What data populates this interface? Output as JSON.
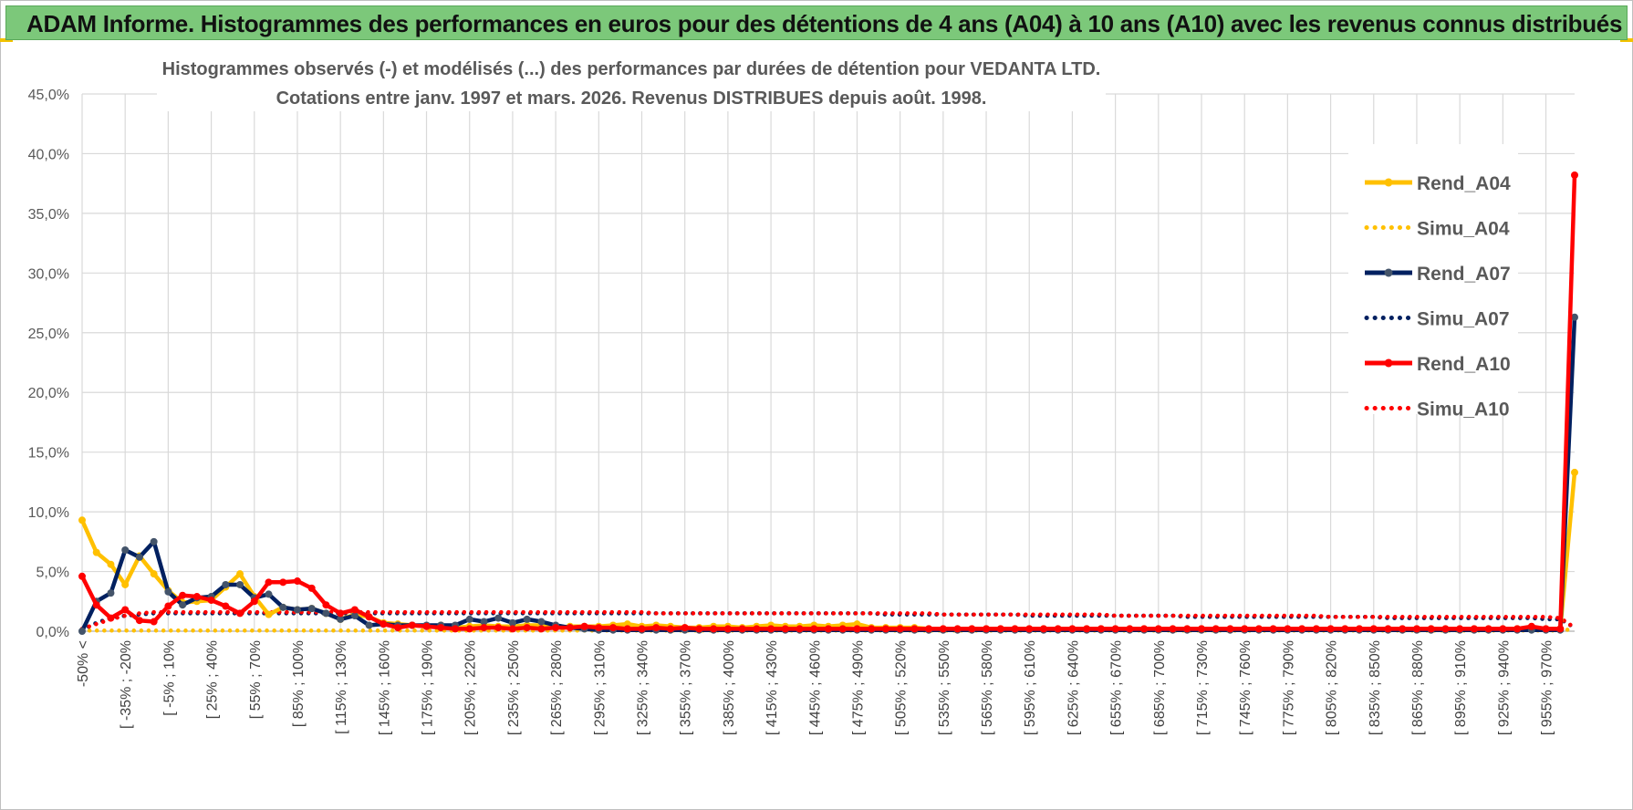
{
  "header": {
    "title": "ADAM Informe. Histogrammes des performances en euros pour des détentions de 4 ans (A04) à 10 ans (A10) avec les revenus connus distribués"
  },
  "colors": {
    "header_bg": "#7cc87a",
    "a04": "#ffc000",
    "a07": "#002060",
    "a10": "#ff0000",
    "grid": "#d9d9d9"
  },
  "chart_data": {
    "type": "line",
    "title_line1": "Histogrammes observés (-) et modélisés (...) des performances par durées de détention pour VEDANTA LTD.",
    "title_line2": "Cotations entre janv. 1997 et mars. 2026.  Revenus DISTRIBUES depuis août. 1998.",
    "y_ticks": [
      "0,0%",
      "5,0%",
      "10,0%",
      "15,0%",
      "20,0%",
      "25,0%",
      "30,0%",
      "35,0%",
      "40,0%",
      "45,0%"
    ],
    "ylim": [
      0,
      45
    ],
    "grid": true,
    "legend_position": "right",
    "x_tick_labels": [
      "-50% <",
      "[ -35% ; -20%",
      "[ -5% ; 10%",
      "[ 25% ; 40%",
      "[ 55% ; 70%",
      "[ 85% ; 100%",
      "[ 115% ; 130%",
      "[ 145% ; 160%",
      "[ 175% ; 190%",
      "[ 205% ; 220%",
      "[ 235% ; 250%",
      "[ 265% ; 280%",
      "[ 295% ; 310%",
      "[ 325% ; 340%",
      "[ 355% ; 370%",
      "[ 385% ; 400%",
      "[ 415% ; 430%",
      "[ 445% ; 460%",
      "[ 475% ; 490%",
      "[ 505% ; 520%",
      "[ 535% ; 550%",
      "[ 565% ; 580%",
      "[ 595% ; 610%",
      "[ 625% ; 640%",
      "[ 655% ; 670%",
      "[ 685% ; 700%",
      "[ 715% ; 730%",
      "[ 745% ; 760%",
      "[ 775% ; 790%",
      "[ 805% ; 820%",
      "[ 835% ; 850%",
      "[ 865% ; 880%",
      "[ 895% ; 910%",
      "[ 925% ; 940%",
      "[ 955% ; 970%"
    ],
    "series": [
      {
        "name": "Rend_A04",
        "style": "solid",
        "color": "#ffc000",
        "values": [
          9.3,
          6.6,
          5.6,
          3.9,
          6.3,
          4.8,
          3.4,
          2.4,
          2.5,
          2.6,
          3.7,
          4.8,
          2.9,
          1.4,
          2.0,
          1.8,
          1.9,
          1.5,
          1.0,
          1.4,
          1.2,
          0.7,
          0.6,
          0.5,
          0.4,
          0.5,
          0.3,
          0.4,
          0.5,
          0.4,
          0.4,
          0.5,
          0.5,
          0.3,
          0.4,
          0.4,
          0.4,
          0.5,
          0.6,
          0.4,
          0.5,
          0.4,
          0.3,
          0.3,
          0.4,
          0.4,
          0.3,
          0.4,
          0.5,
          0.4,
          0.4,
          0.5,
          0.4,
          0.5,
          0.6,
          0.3,
          0.3,
          0.3,
          0.3,
          0.2,
          0.2,
          0.2,
          0.2,
          0.2,
          0.2,
          0.2,
          0.2,
          0.2,
          0.2,
          0.2,
          0.2,
          0.2,
          0.2,
          0.2,
          0.2,
          0.2,
          0.2,
          0.2,
          0.2,
          0.2,
          0.2,
          0.2,
          0.2,
          0.2,
          0.2,
          0.2,
          0.2,
          0.2,
          0.2,
          0.2,
          0.2,
          0.2,
          0.2,
          0.2,
          0.2,
          0.2,
          0.2,
          0.2,
          0.2,
          0.2,
          0.2,
          0.2,
          0.2,
          0.2,
          13.3
        ]
      },
      {
        "name": "Simu_A04",
        "style": "dotted",
        "color": "#ffc000",
        "values": [
          0.05,
          0.05,
          0.05,
          0.05,
          0.05,
          0.05,
          0.05,
          0.05,
          0.05,
          0.05,
          0.05,
          0.05,
          0.05,
          0.05,
          0.05,
          0.05,
          0.05,
          0.05,
          0.05,
          0.05,
          0.05,
          0.05,
          0.05,
          0.05,
          0.05,
          0.05,
          0.05,
          0.05,
          0.05,
          0.05,
          0.05,
          0.05,
          0.05,
          0.05,
          0.05,
          0.05,
          0.05,
          0.05,
          0.05,
          0.05,
          0.05,
          0.05,
          0.05,
          0.05,
          0.05,
          0.05,
          0.05,
          0.05,
          0.05,
          0.05,
          0.05,
          0.05,
          0.05,
          0.05,
          0.05,
          0.05,
          0.05,
          0.05,
          0.05,
          0.05,
          0.05,
          0.05,
          0.05,
          0.05,
          0.05,
          0.05,
          0.05,
          0.05,
          0.05,
          0.05,
          0.05,
          0.05,
          0.05,
          0.05,
          0.05,
          0.05,
          0.05,
          0.05,
          0.05,
          0.05,
          0.05,
          0.05,
          0.05,
          0.05,
          0.05,
          0.05,
          0.05,
          0.05,
          0.05,
          0.05,
          0.05,
          0.05,
          0.05,
          0.05,
          0.05,
          0.05,
          0.05,
          0.05,
          0.05,
          0.05,
          0.05,
          0.05,
          0.05,
          0.05,
          0.2
        ]
      },
      {
        "name": "Rend_A07",
        "style": "solid",
        "color": "#002060",
        "values": [
          0.0,
          2.5,
          3.2,
          6.8,
          6.2,
          7.5,
          3.3,
          2.2,
          2.8,
          2.9,
          3.9,
          3.9,
          2.8,
          3.1,
          2.0,
          1.8,
          1.9,
          1.5,
          1.0,
          1.3,
          0.5,
          0.6,
          0.5,
          0.5,
          0.5,
          0.5,
          0.5,
          1.0,
          0.8,
          1.1,
          0.7,
          1.0,
          0.8,
          0.5,
          0.3,
          0.2,
          0.1,
          0.1,
          0.1,
          0.1,
          0.1,
          0.1,
          0.1,
          0.1,
          0.1,
          0.1,
          0.1,
          0.1,
          0.1,
          0.1,
          0.1,
          0.1,
          0.1,
          0.1,
          0.1,
          0.1,
          0.1,
          0.1,
          0.1,
          0.1,
          0.1,
          0.1,
          0.1,
          0.1,
          0.1,
          0.1,
          0.1,
          0.1,
          0.1,
          0.1,
          0.1,
          0.1,
          0.1,
          0.1,
          0.1,
          0.1,
          0.1,
          0.1,
          0.1,
          0.1,
          0.1,
          0.1,
          0.1,
          0.1,
          0.1,
          0.1,
          0.1,
          0.1,
          0.1,
          0.1,
          0.1,
          0.1,
          0.1,
          0.1,
          0.1,
          0.1,
          0.1,
          0.1,
          0.1,
          0.1,
          0.1,
          0.1,
          0.1,
          0.1,
          26.3
        ]
      },
      {
        "name": "Simu_A07",
        "style": "dotted",
        "color": "#002060",
        "values": [
          0.1,
          0.7,
          1.1,
          1.3,
          1.4,
          1.5,
          1.5,
          1.5,
          1.5,
          1.5,
          1.5,
          1.5,
          1.5,
          1.5,
          1.5,
          1.5,
          1.5,
          1.5,
          1.5,
          1.5,
          1.5,
          1.5,
          1.5,
          1.5,
          1.5,
          1.5,
          1.5,
          1.5,
          1.5,
          1.5,
          1.5,
          1.5,
          1.5,
          1.5,
          1.5,
          1.5,
          1.5,
          1.5,
          1.5,
          1.5,
          1.5,
          1.5,
          1.5,
          1.5,
          1.5,
          1.5,
          1.5,
          1.5,
          1.5,
          1.5,
          1.5,
          1.5,
          1.5,
          1.5,
          1.5,
          1.5,
          1.4,
          1.4,
          1.4,
          1.4,
          1.4,
          1.4,
          1.4,
          1.4,
          1.4,
          1.4,
          1.3,
          1.3,
          1.3,
          1.3,
          1.3,
          1.3,
          1.3,
          1.3,
          1.3,
          1.3,
          1.3,
          1.2,
          1.2,
          1.2,
          1.2,
          1.2,
          1.2,
          1.2,
          1.2,
          1.2,
          1.2,
          1.2,
          1.2,
          1.2,
          1.2,
          1.1,
          1.1,
          1.1,
          1.1,
          1.1,
          1.1,
          1.1,
          1.1,
          1.1,
          1.1,
          1.1,
          1.0,
          1.0,
          0.3
        ]
      },
      {
        "name": "Rend_A10",
        "style": "solid",
        "color": "#ff0000",
        "values": [
          4.6,
          2.2,
          1.1,
          1.8,
          0.9,
          0.8,
          2.1,
          3.0,
          2.9,
          2.6,
          2.1,
          1.5,
          2.5,
          4.1,
          4.1,
          4.2,
          3.6,
          2.2,
          1.5,
          1.8,
          1.2,
          0.6,
          0.3,
          0.5,
          0.4,
          0.3,
          0.2,
          0.2,
          0.3,
          0.3,
          0.2,
          0.3,
          0.2,
          0.3,
          0.3,
          0.4,
          0.3,
          0.3,
          0.2,
          0.2,
          0.3,
          0.2,
          0.3,
          0.2,
          0.2,
          0.2,
          0.2,
          0.2,
          0.2,
          0.2,
          0.2,
          0.2,
          0.2,
          0.2,
          0.2,
          0.2,
          0.2,
          0.2,
          0.2,
          0.2,
          0.2,
          0.2,
          0.2,
          0.2,
          0.2,
          0.2,
          0.2,
          0.2,
          0.2,
          0.2,
          0.2,
          0.2,
          0.2,
          0.2,
          0.2,
          0.2,
          0.2,
          0.2,
          0.2,
          0.2,
          0.2,
          0.2,
          0.2,
          0.2,
          0.2,
          0.2,
          0.2,
          0.2,
          0.2,
          0.2,
          0.2,
          0.2,
          0.2,
          0.2,
          0.2,
          0.2,
          0.2,
          0.2,
          0.2,
          0.2,
          0.2,
          0.4,
          0.2,
          0.2,
          38.2
        ]
      },
      {
        "name": "Simu_A10",
        "style": "dotted",
        "color": "#ff0000",
        "values": [
          0.2,
          0.6,
          1.0,
          1.3,
          1.5,
          1.6,
          1.6,
          1.6,
          1.6,
          1.6,
          1.6,
          1.6,
          1.6,
          1.6,
          1.6,
          1.6,
          1.6,
          1.6,
          1.6,
          1.6,
          1.6,
          1.6,
          1.6,
          1.6,
          1.6,
          1.6,
          1.6,
          1.6,
          1.6,
          1.6,
          1.6,
          1.6,
          1.6,
          1.6,
          1.6,
          1.6,
          1.6,
          1.6,
          1.6,
          1.6,
          1.5,
          1.5,
          1.5,
          1.5,
          1.5,
          1.5,
          1.5,
          1.5,
          1.5,
          1.5,
          1.5,
          1.5,
          1.5,
          1.5,
          1.5,
          1.5,
          1.5,
          1.5,
          1.5,
          1.5,
          1.4,
          1.4,
          1.4,
          1.4,
          1.4,
          1.4,
          1.4,
          1.4,
          1.4,
          1.4,
          1.4,
          1.4,
          1.3,
          1.3,
          1.3,
          1.3,
          1.3,
          1.3,
          1.3,
          1.3,
          1.3,
          1.3,
          1.3,
          1.3,
          1.3,
          1.3,
          1.3,
          1.2,
          1.2,
          1.2,
          1.2,
          1.2,
          1.2,
          1.2,
          1.2,
          1.2,
          1.2,
          1.2,
          1.2,
          1.2,
          1.2,
          1.2,
          1.2,
          1.1,
          0.3
        ]
      }
    ]
  }
}
